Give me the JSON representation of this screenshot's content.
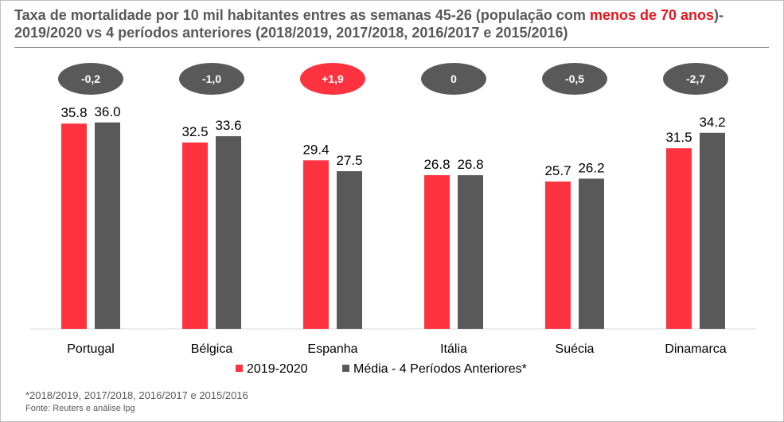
{
  "title": {
    "part1": "Taxa de mortalidade por 10 mil habitantes entres as semanas 45-26 (população com ",
    "highlight": "menos de 70 anos",
    "part2": ")- 2019/2020 vs 4 períodos anteriores (2018/2019, 2017/2018, 2016/2017 e 2015/2016)"
  },
  "chart_data": {
    "type": "bar",
    "categories": [
      "Portugal",
      "Bélgica",
      "Espanha",
      "Itália",
      "Suécia",
      "Dinamarca"
    ],
    "series": [
      {
        "name": "2019-2020",
        "color": "#ff3340",
        "values": [
          35.8,
          32.5,
          29.4,
          26.8,
          25.7,
          31.5
        ]
      },
      {
        "name": "Média - 4 Períodos Anteriores*",
        "color": "#595959",
        "values": [
          36.0,
          33.6,
          27.5,
          26.8,
          26.2,
          34.2
        ]
      }
    ],
    "differences": [
      "-0,2",
      "-1,0",
      "+1,9",
      "0",
      "-0,5",
      "-2,7"
    ],
    "difference_colors": [
      "#595959",
      "#595959",
      "#ff3340",
      "#595959",
      "#595959",
      "#595959"
    ],
    "ylim": [
      0,
      40
    ],
    "legend_position": "bottom"
  },
  "footnote": "*2018/2019, 2017/2018, 2016/2017 e 2015/2016",
  "source": "Fonte: Reuters e análise lpg"
}
